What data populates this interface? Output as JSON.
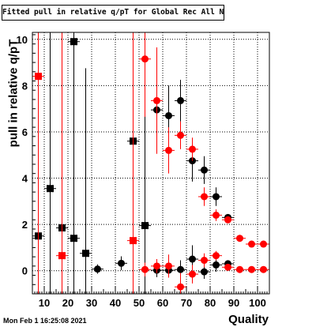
{
  "chart_data": {
    "type": "scatter",
    "title": "Fitted pull in relative q/pT for Global Rec All NoHits",
    "xlabel": "Quality",
    "ylabel": "pull in relative q/pT",
    "xlim": [
      5,
      105
    ],
    "ylim": [
      -1,
      10.3
    ],
    "x_ticks": [
      10,
      20,
      30,
      40,
      50,
      60,
      70,
      80,
      90,
      100
    ],
    "y_ticks": [
      0,
      2,
      4,
      6,
      8,
      10
    ],
    "series": [
      {
        "color": "#000000",
        "points": [
          {
            "x": 7.5,
            "y": 1.5,
            "err": 20
          },
          {
            "x": 12.5,
            "y": 3.55,
            "err": 20
          },
          {
            "x": 17.5,
            "y": 1.85,
            "err": 20
          },
          {
            "x": 22.5,
            "y": 9.9,
            "err": 20
          },
          {
            "x": 22.5,
            "y": 1.4,
            "err": 20
          },
          {
            "x": 27.5,
            "y": 0.75,
            "err": 8.0
          },
          {
            "x": 32.5,
            "y": 0.07,
            "err": 0.2
          },
          {
            "x": 42.5,
            "y": 0.32,
            "err": 0.3
          },
          {
            "x": 47.5,
            "y": 5.6,
            "err": 20
          },
          {
            "x": 52.5,
            "y": 1.95,
            "err": 20
          },
          {
            "x": 57.5,
            "y": 6.95,
            "err": 1.5
          },
          {
            "x": 57.5,
            "y": 0.02,
            "err": 0.3
          },
          {
            "x": 62.5,
            "y": 6.7,
            "err": 1.3
          },
          {
            "x": 62.5,
            "y": 0.02,
            "err": 0.3
          },
          {
            "x": 67.5,
            "y": 7.35,
            "err": 0.9
          },
          {
            "x": 67.5,
            "y": 0.05,
            "err": 0.4
          },
          {
            "x": 72.5,
            "y": 4.75,
            "err": 0.9
          },
          {
            "x": 72.5,
            "y": 0.5,
            "err": 0.6
          },
          {
            "x": 77.5,
            "y": 4.35,
            "err": 0.6
          },
          {
            "x": 77.5,
            "y": -0.05,
            "err": 0.3
          },
          {
            "x": 82.5,
            "y": 3.2,
            "err": 0.4
          },
          {
            "x": 82.5,
            "y": 0.25,
            "err": 0.3
          },
          {
            "x": 87.5,
            "y": 2.3,
            "err": 0.15
          },
          {
            "x": 87.5,
            "y": 0.3,
            "err": 0.15
          }
        ]
      },
      {
        "color": "#ff0000",
        "points": [
          {
            "x": 7.5,
            "y": 8.4,
            "err": 20
          },
          {
            "x": 17.5,
            "y": 0.65,
            "err": 20
          },
          {
            "x": 47.5,
            "y": 1.3,
            "err": 20
          },
          {
            "x": 52.5,
            "y": 9.15,
            "err": 2.5
          },
          {
            "x": 52.5,
            "y": 0.05,
            "err": 0.3
          },
          {
            "x": 57.5,
            "y": 7.35,
            "err": 2.3
          },
          {
            "x": 57.5,
            "y": 0.2,
            "err": 0.3
          },
          {
            "x": 62.5,
            "y": 5.2,
            "err": 1.0
          },
          {
            "x": 62.5,
            "y": 0.2,
            "err": 0.5
          },
          {
            "x": 67.5,
            "y": 5.85,
            "err": 0.6
          },
          {
            "x": 67.5,
            "y": -0.7,
            "err": 0.6
          },
          {
            "x": 72.5,
            "y": 5.25,
            "err": 0.5
          },
          {
            "x": 72.5,
            "y": -0.15,
            "err": 0.4
          },
          {
            "x": 77.5,
            "y": 3.2,
            "err": 0.4
          },
          {
            "x": 77.5,
            "y": 0.45,
            "err": 0.3
          },
          {
            "x": 82.5,
            "y": 2.4,
            "err": 0.25
          },
          {
            "x": 82.5,
            "y": 0.65,
            "err": 0.2
          },
          {
            "x": 87.5,
            "y": 2.2,
            "err": 0.15
          },
          {
            "x": 87.5,
            "y": 0.15,
            "err": 0.1
          },
          {
            "x": 92.5,
            "y": 1.4,
            "err": 0.1
          },
          {
            "x": 92.5,
            "y": 0.05,
            "err": 0.05
          },
          {
            "x": 97.5,
            "y": 1.15,
            "err": 0.08
          },
          {
            "x": 97.5,
            "y": 0.05,
            "err": 0.05
          },
          {
            "x": 102.5,
            "y": 1.15,
            "err": 0.08
          },
          {
            "x": 102.5,
            "y": 0.05,
            "err": 0.05
          }
        ]
      }
    ]
  },
  "footer": "Mon Feb  1 16:25:08 2021"
}
